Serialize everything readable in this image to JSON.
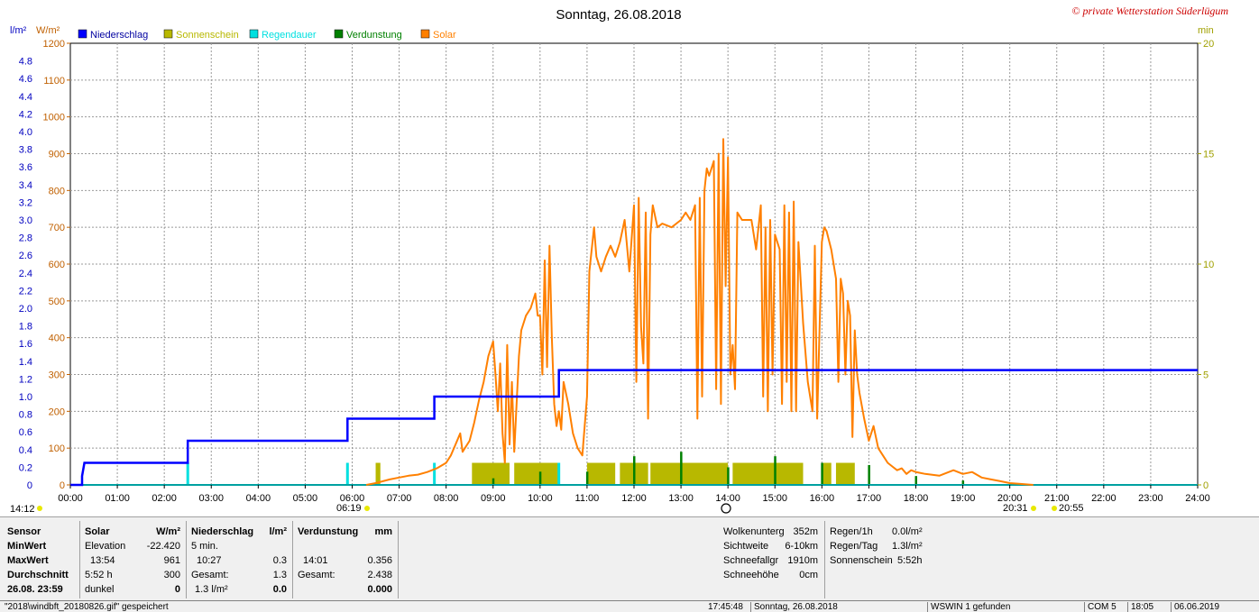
{
  "title": "Sonntag, 26.08.2018",
  "watermark": "© private Wetterstation Süderlügum",
  "legend": [
    {
      "label": "Niederschlag",
      "color": "#0000ff"
    },
    {
      "label": "Sonnenschein",
      "color": "#b8b800"
    },
    {
      "label": "Regendauer",
      "color": "#00e0e0"
    },
    {
      "label": "Verdunstung",
      "color": "#008000"
    },
    {
      "label": "Solar",
      "color": "#ff8000"
    }
  ],
  "axis_units": {
    "left_rain": "l/m²",
    "left_solar": "W/m²",
    "right": "min"
  },
  "markers": {
    "left_time": "14:12",
    "sunrise": "06:19",
    "sunset": "20:31",
    "dusk": "20:55"
  },
  "chart_data": {
    "type": "line",
    "title": "Sonntag, 26.08.2018",
    "x_ticks": [
      "00:00",
      "01:00",
      "02:00",
      "03:00",
      "04:00",
      "05:00",
      "06:00",
      "07:00",
      "08:00",
      "09:00",
      "10:00",
      "11:00",
      "12:00",
      "13:00",
      "14:00",
      "15:00",
      "16:00",
      "17:00",
      "18:00",
      "19:00",
      "20:00",
      "21:00",
      "22:00",
      "23:00",
      "24:00"
    ],
    "xlim_hours": [
      0,
      24
    ],
    "y_solar": {
      "label": "W/m²",
      "ylim": [
        0,
        1200
      ],
      "ticks": [
        "0",
        "100",
        "200",
        "300",
        "400",
        "500",
        "600",
        "700",
        "800",
        "900",
        "1000",
        "1100",
        "1200"
      ]
    },
    "y_rain": {
      "label": "l/m²",
      "ylim": [
        0,
        5.0
      ],
      "ticks": [
        "0",
        "0.2",
        "0.4",
        "0.6",
        "0.8",
        "1.0",
        "1.2",
        "1.4",
        "1.6",
        "1.8",
        "2.0",
        "2.2",
        "2.4",
        "2.6",
        "2.8",
        "3.0",
        "3.2",
        "3.4",
        "3.6",
        "3.8",
        "4.0",
        "4.2",
        "4.4",
        "4.6",
        "4.8"
      ]
    },
    "y_minutes": {
      "label": "min",
      "ylim": [
        0,
        20
      ],
      "ticks": [
        "0",
        "5",
        "10",
        "15",
        "20"
      ]
    },
    "series": [
      {
        "name": "Niederschlag",
        "color": "#0000ff",
        "step": true,
        "points": [
          [
            0,
            0
          ],
          [
            0.25,
            0
          ],
          [
            0.25,
            0.1
          ],
          [
            0.3,
            0.25
          ],
          [
            2.5,
            0.25
          ],
          [
            2.5,
            0.5
          ],
          [
            5.9,
            0.5
          ],
          [
            5.9,
            0.75
          ],
          [
            7.75,
            0.75
          ],
          [
            7.75,
            1.0
          ],
          [
            10.4,
            1.0
          ],
          [
            10.4,
            1.3
          ],
          [
            24,
            1.3
          ]
        ]
      },
      {
        "name": "Solar",
        "color": "#ff8000",
        "points": [
          [
            6.3,
            0
          ],
          [
            6.5,
            5
          ],
          [
            6.8,
            15
          ],
          [
            7.0,
            20
          ],
          [
            7.2,
            25
          ],
          [
            7.4,
            28
          ],
          [
            7.6,
            35
          ],
          [
            7.8,
            45
          ],
          [
            8.0,
            60
          ],
          [
            8.1,
            80
          ],
          [
            8.2,
            110
          ],
          [
            8.3,
            140
          ],
          [
            8.35,
            90
          ],
          [
            8.5,
            120
          ],
          [
            8.6,
            170
          ],
          [
            8.7,
            230
          ],
          [
            8.8,
            280
          ],
          [
            8.9,
            350
          ],
          [
            9.0,
            390
          ],
          [
            9.05,
            300
          ],
          [
            9.1,
            200
          ],
          [
            9.15,
            330
          ],
          [
            9.2,
            140
          ],
          [
            9.25,
            60
          ],
          [
            9.3,
            380
          ],
          [
            9.35,
            110
          ],
          [
            9.4,
            280
          ],
          [
            9.45,
            90
          ],
          [
            9.55,
            350
          ],
          [
            9.6,
            420
          ],
          [
            9.7,
            460
          ],
          [
            9.8,
            480
          ],
          [
            9.9,
            520
          ],
          [
            9.95,
            460
          ],
          [
            10.0,
            460
          ],
          [
            10.05,
            300
          ],
          [
            10.1,
            610
          ],
          [
            10.15,
            320
          ],
          [
            10.2,
            650
          ],
          [
            10.25,
            400
          ],
          [
            10.3,
            220
          ],
          [
            10.35,
            160
          ],
          [
            10.4,
            200
          ],
          [
            10.45,
            150
          ],
          [
            10.5,
            280
          ],
          [
            10.6,
            220
          ],
          [
            10.7,
            140
          ],
          [
            10.8,
            100
          ],
          [
            10.9,
            80
          ],
          [
            11.0,
            240
          ],
          [
            11.05,
            580
          ],
          [
            11.1,
            640
          ],
          [
            11.15,
            700
          ],
          [
            11.2,
            620
          ],
          [
            11.3,
            580
          ],
          [
            11.4,
            620
          ],
          [
            11.5,
            650
          ],
          [
            11.6,
            620
          ],
          [
            11.7,
            660
          ],
          [
            11.8,
            720
          ],
          [
            11.9,
            580
          ],
          [
            12.0,
            760
          ],
          [
            12.05,
            280
          ],
          [
            12.1,
            780
          ],
          [
            12.15,
            430
          ],
          [
            12.2,
            330
          ],
          [
            12.25,
            740
          ],
          [
            12.3,
            180
          ],
          [
            12.35,
            680
          ],
          [
            12.4,
            760
          ],
          [
            12.5,
            700
          ],
          [
            12.6,
            710
          ],
          [
            12.8,
            700
          ],
          [
            13.0,
            720
          ],
          [
            13.1,
            740
          ],
          [
            13.2,
            720
          ],
          [
            13.3,
            760
          ],
          [
            13.35,
            180
          ],
          [
            13.4,
            780
          ],
          [
            13.45,
            240
          ],
          [
            13.5,
            800
          ],
          [
            13.55,
            860
          ],
          [
            13.6,
            840
          ],
          [
            13.7,
            880
          ],
          [
            13.75,
            260
          ],
          [
            13.8,
            900
          ],
          [
            13.85,
            220
          ],
          [
            13.9,
            940
          ],
          [
            13.95,
            540
          ],
          [
            14.0,
            890
          ],
          [
            14.05,
            300
          ],
          [
            14.1,
            380
          ],
          [
            14.15,
            260
          ],
          [
            14.2,
            740
          ],
          [
            14.3,
            720
          ],
          [
            14.4,
            720
          ],
          [
            14.5,
            720
          ],
          [
            14.6,
            640
          ],
          [
            14.7,
            760
          ],
          [
            14.75,
            240
          ],
          [
            14.8,
            700
          ],
          [
            14.85,
            200
          ],
          [
            14.9,
            720
          ],
          [
            14.95,
            300
          ],
          [
            15.0,
            680
          ],
          [
            15.1,
            640
          ],
          [
            15.15,
            220
          ],
          [
            15.2,
            760
          ],
          [
            15.25,
            280
          ],
          [
            15.3,
            740
          ],
          [
            15.35,
            200
          ],
          [
            15.4,
            770
          ],
          [
            15.45,
            200
          ],
          [
            15.5,
            660
          ],
          [
            15.6,
            440
          ],
          [
            15.7,
            280
          ],
          [
            15.8,
            200
          ],
          [
            15.85,
            650
          ],
          [
            15.9,
            180
          ],
          [
            16.0,
            660
          ],
          [
            16.05,
            700
          ],
          [
            16.1,
            690
          ],
          [
            16.2,
            640
          ],
          [
            16.3,
            560
          ],
          [
            16.35,
            280
          ],
          [
            16.4,
            560
          ],
          [
            16.45,
            520
          ],
          [
            16.5,
            300
          ],
          [
            16.55,
            500
          ],
          [
            16.6,
            460
          ],
          [
            16.65,
            130
          ],
          [
            16.7,
            420
          ],
          [
            16.75,
            300
          ],
          [
            16.8,
            250
          ],
          [
            16.9,
            180
          ],
          [
            17.0,
            120
          ],
          [
            17.1,
            160
          ],
          [
            17.2,
            100
          ],
          [
            17.3,
            80
          ],
          [
            17.4,
            60
          ],
          [
            17.5,
            50
          ],
          [
            17.6,
            40
          ],
          [
            17.7,
            45
          ],
          [
            17.8,
            30
          ],
          [
            17.9,
            40
          ],
          [
            18.0,
            35
          ],
          [
            18.2,
            30
          ],
          [
            18.5,
            25
          ],
          [
            18.8,
            40
          ],
          [
            19.0,
            30
          ],
          [
            19.2,
            35
          ],
          [
            19.4,
            20
          ],
          [
            19.6,
            15
          ],
          [
            19.8,
            10
          ],
          [
            20.0,
            5
          ],
          [
            20.2,
            3
          ],
          [
            20.5,
            0
          ]
        ]
      },
      {
        "name": "Sonnenschein",
        "color": "#b8b800",
        "bars_hours": [
          [
            6.5,
            6.6
          ],
          [
            8.55,
            9.35
          ],
          [
            9.45,
            10.4
          ],
          [
            11.0,
            11.6
          ],
          [
            11.7,
            12.3
          ],
          [
            12.35,
            14.0
          ],
          [
            14.1,
            15.6
          ],
          [
            16.0,
            16.2
          ],
          [
            16.3,
            16.7
          ]
        ],
        "value_min": 1
      },
      {
        "name": "Regendauer",
        "color": "#00e0e0",
        "bars": [
          [
            2.5,
            1.0
          ],
          [
            5.9,
            1.0
          ],
          [
            7.75,
            1.0
          ],
          [
            10.4,
            1.0
          ]
        ]
      },
      {
        "name": "Verdunstung",
        "color": "#008000",
        "bars": [
          [
            9.0,
            0.3
          ],
          [
            10.0,
            0.6
          ],
          [
            11.0,
            0.6
          ],
          [
            12.0,
            1.3
          ],
          [
            13.0,
            1.5
          ],
          [
            14.0,
            0.8
          ],
          [
            15.0,
            1.3
          ],
          [
            16.0,
            1.0
          ],
          [
            17.0,
            0.9
          ],
          [
            18.0,
            0.4
          ],
          [
            19.0,
            0.2
          ]
        ]
      }
    ]
  },
  "panel": {
    "col1": {
      "header": "Sensor",
      "rows": [
        "MinWert",
        "MaxWert",
        "Durchschnitt",
        "26.08. 23:59"
      ]
    },
    "col2": {
      "header": "Solar",
      "unit": "W/m²",
      "rows": [
        [
          "Elevation",
          "-22.420"
        ],
        [
          "13:54",
          "961"
        ],
        [
          "5:52 h",
          "300"
        ],
        [
          "dunkel",
          "0"
        ]
      ]
    },
    "col3": {
      "header": "Niederschlag",
      "unit": "l/m²",
      "rows": [
        [
          "5 min.",
          ""
        ],
        [
          "10:27",
          "0.3"
        ],
        [
          "Gesamt:",
          "1.3"
        ],
        [
          "1.3 l/m²",
          "0.0"
        ]
      ]
    },
    "col4": {
      "header": "Verdunstung",
      "unit": "mm",
      "rows": [
        [
          "",
          ""
        ],
        [
          "14:01",
          "0.356"
        ],
        [
          "Gesamt:",
          "2.438"
        ],
        [
          "",
          "0.000"
        ]
      ]
    },
    "col5": {
      "rows": [
        [
          "Wolkenunterg",
          "352m"
        ],
        [
          "Sichtweite",
          "6-10km"
        ],
        [
          "Schneefallgr",
          "1910m"
        ],
        [
          "Schneehöhe",
          "0cm"
        ]
      ]
    },
    "col6": {
      "rows": [
        [
          "Regen/1h",
          "0.0l/m²"
        ],
        [
          "Regen/Tag",
          "1.3l/m²"
        ],
        [
          "Sonnenschein",
          "5:52h"
        ]
      ]
    }
  },
  "status_bar": [
    "\"2018\\windbft_20180826.gif\" gespeichert",
    "17:45:48",
    "Sonntag, 26.08.2018",
    "WSWIN 1 gefunden",
    "COM 5",
    "18:05",
    "06.06.2019"
  ]
}
